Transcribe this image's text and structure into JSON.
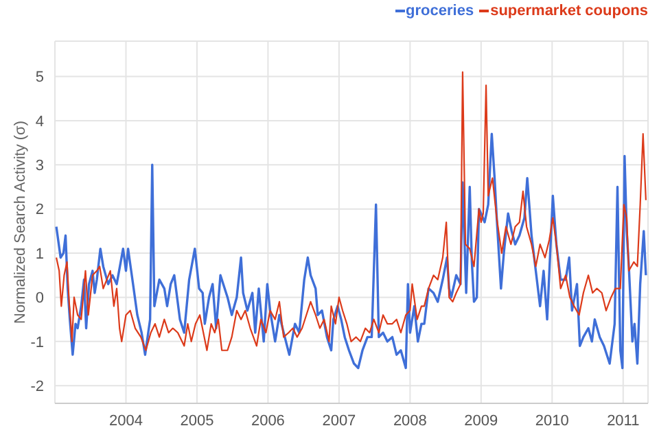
{
  "chart_data": {
    "type": "line",
    "ylabel": "Normalized Search Activity (σ)",
    "xlim": [
      2003,
      2011.35
    ],
    "xticks": [
      2004,
      2005,
      2006,
      2007,
      2008,
      2009,
      2010,
      2011
    ],
    "ylim": [
      -2.4,
      5.8
    ],
    "yticks": [
      -2,
      -1,
      0,
      1,
      2,
      3,
      4,
      5
    ],
    "grid": true,
    "legend": "top right",
    "marker": "none",
    "line_style": "solid",
    "series": [
      {
        "name": "groceries",
        "color": "#3f6fd8",
        "x": [
          2003.02,
          2003.08,
          2003.12,
          2003.15,
          2003.18,
          2003.21,
          2003.25,
          2003.29,
          2003.32,
          2003.37,
          2003.41,
          2003.44,
          2003.48,
          2003.53,
          2003.56,
          2003.59,
          2003.64,
          2003.68,
          2003.75,
          2003.81,
          2003.87,
          2003.96,
          2004.0,
          2004.03,
          2004.1,
          2004.16,
          2004.22,
          2004.27,
          2004.34,
          2004.37,
          2004.4,
          2004.47,
          2004.54,
          2004.58,
          2004.63,
          2004.68,
          2004.76,
          2004.82,
          2004.89,
          2004.97,
          2005.03,
          2005.08,
          2005.11,
          2005.17,
          2005.22,
          2005.27,
          2005.33,
          2005.43,
          2005.49,
          2005.56,
          2005.62,
          2005.65,
          2005.71,
          2005.78,
          2005.82,
          2005.87,
          2005.94,
          2005.99,
          2006.03,
          2006.1,
          2006.16,
          2006.22,
          2006.3,
          2006.38,
          2006.44,
          2006.51,
          2006.56,
          2006.6,
          2006.67,
          2006.7,
          2006.76,
          2006.83,
          2006.89,
          2006.92,
          2006.98,
          2007.03,
          2007.08,
          2007.14,
          2007.21,
          2007.27,
          2007.33,
          2007.4,
          2007.46,
          2007.52,
          2007.56,
          2007.62,
          2007.68,
          2007.75,
          2007.81,
          2007.87,
          2007.94,
          2007.97,
          2008.0,
          2008.06,
          2008.11,
          2008.16,
          2008.2,
          2008.26,
          2008.33,
          2008.39,
          2008.46,
          2008.52,
          2008.55,
          2008.58,
          2008.65,
          2008.71,
          2008.74,
          2008.79,
          2008.84,
          2008.87,
          2008.9,
          2008.94,
          2008.97,
          2009.0,
          2009.05,
          2009.1,
          2009.15,
          2009.19,
          2009.22,
          2009.28,
          2009.32,
          2009.38,
          2009.43,
          2009.48,
          2009.54,
          2009.61,
          2009.65,
          2009.71,
          2009.77,
          2009.83,
          2009.88,
          2009.93,
          2010.01,
          2010.06,
          2010.12,
          2010.19,
          2010.24,
          2010.28,
          2010.35,
          2010.39,
          2010.44,
          2010.51,
          2010.56,
          2010.6,
          2010.67,
          2010.73,
          2010.81,
          2010.88,
          2010.92,
          2010.96,
          2010.99,
          2011.02,
          2011.05,
          2011.08,
          2011.13,
          2011.16,
          2011.2,
          2011.24,
          2011.29,
          2011.32
        ],
        "values": [
          1.6,
          0.9,
          1.0,
          1.4,
          0.2,
          -0.5,
          -1.3,
          -0.6,
          -0.7,
          -0.2,
          0.4,
          -0.7,
          0.3,
          0.6,
          0.1,
          0.4,
          1.1,
          0.7,
          0.3,
          0.5,
          0.3,
          1.1,
          0.6,
          1.1,
          0.3,
          -0.4,
          -0.8,
          -1.3,
          -0.5,
          3.0,
          -0.2,
          0.4,
          0.2,
          -0.2,
          0.3,
          0.5,
          -0.5,
          -0.8,
          0.4,
          1.1,
          0.2,
          0.1,
          -0.6,
          0.0,
          0.3,
          -0.7,
          0.5,
          0.0,
          -0.4,
          0.0,
          0.9,
          0.1,
          -0.3,
          0.1,
          -0.8,
          0.2,
          -1.0,
          0.3,
          -0.3,
          -1.0,
          -0.4,
          -0.8,
          -1.3,
          -0.6,
          -0.8,
          0.4,
          0.9,
          0.5,
          0.2,
          -0.4,
          -0.3,
          -0.9,
          -1.2,
          -0.5,
          -0.2,
          -0.5,
          -0.9,
          -1.2,
          -1.5,
          -1.6,
          -1.2,
          -0.9,
          -0.9,
          2.1,
          -0.9,
          -0.8,
          -1.0,
          -0.9,
          -1.3,
          -1.2,
          -1.6,
          0.3,
          -0.8,
          -0.2,
          -1.0,
          -0.6,
          -0.6,
          0.2,
          0.1,
          -0.1,
          0.4,
          0.9,
          0.2,
          0.0,
          0.5,
          0.3,
          2.6,
          0.1,
          2.5,
          0.8,
          -0.1,
          0.0,
          2.0,
          1.9,
          1.7,
          2.1,
          3.7,
          2.7,
          1.8,
          0.2,
          1.0,
          1.9,
          1.5,
          1.2,
          1.4,
          1.8,
          2.7,
          1.4,
          0.6,
          -0.2,
          0.6,
          -0.5,
          2.3,
          1.2,
          0.4,
          0.4,
          0.9,
          -0.3,
          0.3,
          -1.1,
          -0.9,
          -0.7,
          -1.0,
          -0.5,
          -0.9,
          -1.1,
          -1.5,
          -0.6,
          2.5,
          -1.2,
          -1.6,
          3.2,
          1.5,
          0.7,
          -1.0,
          -0.6,
          -1.5,
          0.3,
          1.5,
          0.5
        ]
      },
      {
        "name": "supermarket coupons",
        "color": "#dc3a1a",
        "x": [
          2003.02,
          2003.06,
          2003.09,
          2003.13,
          2003.17,
          2003.2,
          2003.22,
          2003.24,
          2003.27,
          2003.32,
          2003.37,
          2003.43,
          2003.47,
          2003.53,
          2003.59,
          2003.63,
          2003.68,
          2003.78,
          2003.83,
          2003.87,
          2003.91,
          2003.94,
          2004.0,
          2004.06,
          2004.13,
          2004.21,
          2004.28,
          2004.35,
          2004.41,
          2004.47,
          2004.54,
          2004.6,
          2004.66,
          2004.73,
          2004.82,
          2004.87,
          2004.92,
          2004.98,
          2005.04,
          2005.09,
          2005.14,
          2005.2,
          2005.25,
          2005.3,
          2005.35,
          2005.43,
          2005.49,
          2005.56,
          2005.62,
          2005.68,
          2005.75,
          2005.84,
          2005.9,
          2005.97,
          2006.03,
          2006.1,
          2006.16,
          2006.22,
          2006.29,
          2006.35,
          2006.41,
          2006.48,
          2006.54,
          2006.6,
          2006.67,
          2006.73,
          2006.79,
          2006.86,
          2006.89,
          2006.95,
          2007.0,
          2007.05,
          2007.11,
          2007.17,
          2007.24,
          2007.3,
          2007.37,
          2007.43,
          2007.49,
          2007.56,
          2007.62,
          2007.68,
          2007.75,
          2007.81,
          2007.87,
          2007.94,
          2008.0,
          2008.03,
          2008.1,
          2008.16,
          2008.2,
          2008.26,
          2008.33,
          2008.39,
          2008.46,
          2008.51,
          2008.55,
          2008.6,
          2008.65,
          2008.71,
          2008.74,
          2008.78,
          2008.84,
          2008.9,
          2008.97,
          2009.0,
          2009.03,
          2009.07,
          2009.1,
          2009.16,
          2009.22,
          2009.29,
          2009.35,
          2009.42,
          2009.48,
          2009.54,
          2009.59,
          2009.64,
          2009.71,
          2009.77,
          2009.83,
          2009.9,
          2009.96,
          2010.01,
          2010.06,
          2010.12,
          2010.19,
          2010.25,
          2010.31,
          2010.38,
          2010.44,
          2010.51,
          2010.57,
          2010.63,
          2010.7,
          2010.76,
          2010.83,
          2010.89,
          2010.96,
          2011.01,
          2011.05,
          2011.08,
          2011.15,
          2011.2,
          2011.24,
          2011.28,
          2011.32
        ],
        "values": [
          0.9,
          0.6,
          -0.2,
          0.5,
          0.8,
          -0.1,
          -0.5,
          -1.0,
          0.0,
          -0.4,
          -0.5,
          0.6,
          -0.4,
          0.5,
          0.6,
          0.7,
          0.2,
          0.6,
          -0.2,
          0.2,
          -0.7,
          -1.0,
          -0.4,
          -0.3,
          -0.7,
          -0.9,
          -1.2,
          -0.8,
          -0.6,
          -0.9,
          -0.5,
          -0.8,
          -0.7,
          -0.8,
          -1.1,
          -0.6,
          -1.0,
          -0.6,
          -0.4,
          -0.8,
          -1.2,
          -0.6,
          -0.8,
          -0.5,
          -1.2,
          -1.2,
          -0.9,
          -0.3,
          -0.5,
          -0.3,
          -0.7,
          -1.1,
          -0.5,
          -0.8,
          -0.3,
          -0.5,
          -0.1,
          -0.9,
          -0.8,
          -0.7,
          -0.9,
          -0.7,
          -0.4,
          -0.1,
          -0.4,
          -0.7,
          -0.5,
          -1.0,
          -0.2,
          -0.6,
          0.0,
          -0.3,
          -0.6,
          -1.0,
          -0.9,
          -1.0,
          -0.7,
          -0.8,
          -0.5,
          -0.8,
          -0.4,
          -0.6,
          -0.6,
          -0.5,
          -0.8,
          -0.4,
          -0.3,
          0.3,
          -0.5,
          -0.2,
          -0.2,
          0.2,
          0.5,
          0.4,
          0.9,
          1.7,
          0.0,
          -0.1,
          0.1,
          0.3,
          5.1,
          1.2,
          1.1,
          0.7,
          2.0,
          1.7,
          1.9,
          4.8,
          2.3,
          2.7,
          1.8,
          1.0,
          1.6,
          1.2,
          1.6,
          1.7,
          2.4,
          1.6,
          1.2,
          0.7,
          1.2,
          0.9,
          1.3,
          1.8,
          1.2,
          0.2,
          0.5,
          0.0,
          -0.2,
          -0.4,
          0.1,
          0.5,
          0.1,
          0.2,
          0.1,
          -0.3,
          0.0,
          0.2,
          0.2,
          2.1,
          1.8,
          0.6,
          0.8,
          0.7,
          2.1,
          3.7,
          2.2
        ]
      }
    ]
  }
}
